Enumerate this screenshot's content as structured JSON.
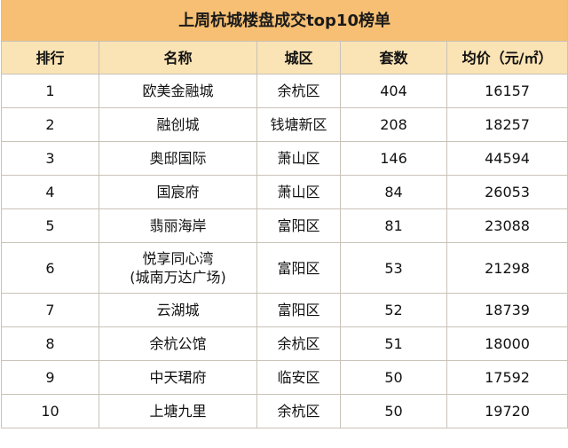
{
  "title": "上周杭城楼盘成交top10榜单",
  "headers": {
    "rank": "排行",
    "name": "名称",
    "district": "城区",
    "units": "套数",
    "avg_price": "均价（元/㎡）"
  },
  "rows": [
    {
      "rank": "1",
      "name": [
        "欧美金融城"
      ],
      "district": "余杭区",
      "units": "404",
      "avg_price": "16157"
    },
    {
      "rank": "2",
      "name": [
        "融创城"
      ],
      "district": "钱塘新区",
      "units": "208",
      "avg_price": "18257"
    },
    {
      "rank": "3",
      "name": [
        "奥邸国际"
      ],
      "district": "萧山区",
      "units": "146",
      "avg_price": "44594"
    },
    {
      "rank": "4",
      "name": [
        "国宸府"
      ],
      "district": "萧山区",
      "units": "84",
      "avg_price": "26053"
    },
    {
      "rank": "5",
      "name": [
        "翡丽海岸"
      ],
      "district": "富阳区",
      "units": "81",
      "avg_price": "23088"
    },
    {
      "rank": "6",
      "name": [
        "悦享同心湾",
        "(城南万达广场)"
      ],
      "district": "富阳区",
      "units": "53",
      "avg_price": "21298"
    },
    {
      "rank": "7",
      "name": [
        "云湖城"
      ],
      "district": "富阳区",
      "units": "52",
      "avg_price": "18739"
    },
    {
      "rank": "8",
      "name": [
        "余杭公馆"
      ],
      "district": "余杭区",
      "units": "51",
      "avg_price": "18000"
    },
    {
      "rank": "9",
      "name": [
        "中天珺府"
      ],
      "district": "临安区",
      "units": "50",
      "avg_price": "17592"
    },
    {
      "rank": "10",
      "name": [
        "上塘九里"
      ],
      "district": "余杭区",
      "units": "50",
      "avg_price": "19720"
    }
  ]
}
